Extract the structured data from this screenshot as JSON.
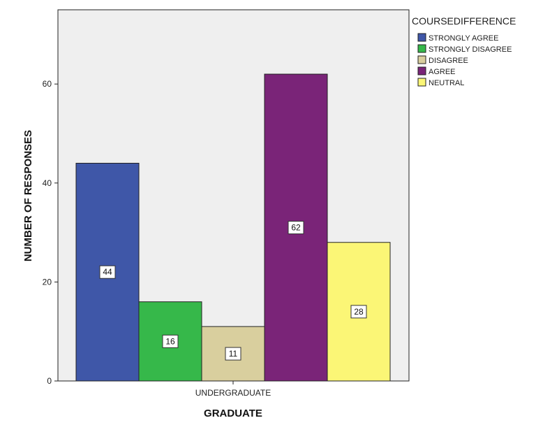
{
  "chart_data": {
    "type": "bar",
    "title": "",
    "xlabel": "GRADUATE",
    "ylabel": "NUMBER OF RESPONSES",
    "categories": [
      "UNDERGRADUATE"
    ],
    "ylim": [
      0,
      75
    ],
    "yticks": [
      0,
      20,
      40,
      60
    ],
    "grid": false,
    "legend_title": "COURSEDIFFERENCE",
    "legend_position": "right",
    "series": [
      {
        "name": "STRONGLY AGREE",
        "values": [
          44
        ],
        "color": "#3f57a8"
      },
      {
        "name": "STRONGLY DISAGREE",
        "values": [
          16
        ],
        "color": "#36b84a"
      },
      {
        "name": "DISAGREE",
        "values": [
          11
        ],
        "color": "#d9cf9e"
      },
      {
        "name": "AGREE",
        "values": [
          62
        ],
        "color": "#7a2478"
      },
      {
        "name": "NEUTRAL",
        "values": [
          28
        ],
        "color": "#fbf676"
      }
    ],
    "data_labels": [
      "44",
      "16",
      "11",
      "62",
      "28"
    ]
  },
  "colors": {
    "plot_background": "#efefef",
    "axis": "#222222"
  }
}
